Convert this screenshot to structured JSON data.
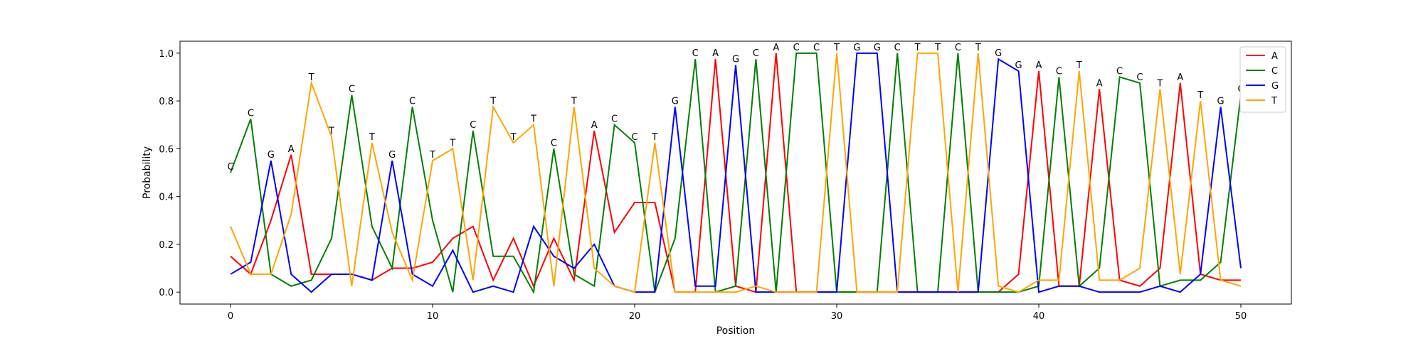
{
  "chart_data": {
    "type": "line",
    "xlabel": "Position",
    "ylabel": "Probability",
    "xlim": [
      -2.5,
      52.5
    ],
    "ylim": [
      -0.05,
      1.05
    ],
    "xticks": [
      0,
      10,
      20,
      30,
      40,
      50
    ],
    "yticks": [
      0.0,
      0.2,
      0.4,
      0.6,
      0.8,
      1.0
    ],
    "ytick_labels": [
      "0.0",
      "0.2",
      "0.4",
      "0.6",
      "0.8",
      "1.0"
    ],
    "legend_position": "top-right",
    "x": [
      0,
      1,
      2,
      3,
      4,
      5,
      6,
      7,
      8,
      9,
      10,
      11,
      12,
      13,
      14,
      15,
      16,
      17,
      18,
      19,
      20,
      21,
      22,
      23,
      24,
      25,
      26,
      27,
      28,
      29,
      30,
      31,
      32,
      33,
      34,
      35,
      36,
      37,
      38,
      39,
      40,
      41,
      42,
      43,
      44,
      45,
      46,
      47,
      48,
      49,
      50
    ],
    "series": [
      {
        "name": "A",
        "color": "#ff0000",
        "values": [
          0.15,
          0.075,
          0.3,
          0.575,
          0.075,
          0.075,
          0.075,
          0.05,
          0.1,
          0.1,
          0.125,
          0.225,
          0.275,
          0.05,
          0.225,
          0.025,
          0.225,
          0.05,
          0.675,
          0.25,
          0.375,
          0.375,
          0.0,
          0.0,
          0.975,
          0.025,
          0.0,
          1.0,
          0.0,
          0.0,
          0.0,
          0.0,
          0.0,
          0.0,
          0.0,
          0.0,
          0.0,
          0.0,
          0.0,
          0.075,
          0.925,
          0.025,
          0.025,
          0.85,
          0.05,
          0.025,
          0.1,
          0.875,
          0.075,
          0.05,
          0.05
        ]
      },
      {
        "name": "C",
        "color": "#008000",
        "values": [
          0.5,
          0.725,
          0.075,
          0.025,
          0.05,
          0.225,
          0.825,
          0.275,
          0.1,
          0.775,
          0.3,
          0.0,
          0.675,
          0.15,
          0.15,
          0.0,
          0.6,
          0.075,
          0.025,
          0.7,
          0.625,
          0.0,
          0.225,
          0.975,
          0.0,
          0.025,
          0.975,
          0.0,
          1.0,
          1.0,
          0.0,
          0.0,
          0.0,
          1.0,
          0.0,
          0.0,
          1.0,
          0.0,
          0.0,
          0.0,
          0.025,
          0.9,
          0.025,
          0.1,
          0.9,
          0.875,
          0.025,
          0.05,
          0.05,
          0.125,
          0.825
        ]
      },
      {
        "name": "G",
        "color": "#0000ff",
        "values": [
          0.075,
          0.125,
          0.55,
          0.075,
          0.0,
          0.075,
          0.075,
          0.05,
          0.55,
          0.075,
          0.025,
          0.175,
          0.0,
          0.025,
          0.0,
          0.275,
          0.15,
          0.1,
          0.2,
          0.025,
          0.0,
          0.0,
          0.775,
          0.025,
          0.025,
          0.95,
          0.0,
          0.0,
          0.0,
          0.0,
          0.0,
          1.0,
          1.0,
          0.0,
          0.0,
          0.0,
          0.0,
          0.0,
          0.975,
          0.925,
          0.0,
          0.025,
          0.025,
          0.0,
          0.0,
          0.0,
          0.025,
          0.0,
          0.075,
          0.775,
          0.1
        ]
      },
      {
        "name": "T",
        "color": "#ffa500",
        "values": [
          0.275,
          0.075,
          0.075,
          0.325,
          0.875,
          0.65,
          0.025,
          0.625,
          0.25,
          0.05,
          0.55,
          0.6,
          0.05,
          0.775,
          0.625,
          0.7,
          0.025,
          0.775,
          0.1,
          0.025,
          0.0,
          0.625,
          0.0,
          0.0,
          0.0,
          0.0,
          0.025,
          0.0,
          0.0,
          0.0,
          1.0,
          0.0,
          0.0,
          0.0,
          1.0,
          1.0,
          0.0,
          1.0,
          0.025,
          0.0,
          0.05,
          0.05,
          0.925,
          0.05,
          0.05,
          0.1,
          0.85,
          0.075,
          0.8,
          0.05,
          0.025
        ]
      }
    ],
    "annotations": [
      "C",
      "C",
      "G",
      "A",
      "T",
      "T",
      "C",
      "T",
      "G",
      "C",
      "T",
      "T",
      "C",
      "T",
      "T",
      "T",
      "C",
      "T",
      "A",
      "C",
      "C",
      "T",
      "G",
      "C",
      "A",
      "G",
      "C",
      "A",
      "C",
      "C",
      "T",
      "G",
      "G",
      "C",
      "T",
      "T",
      "C",
      "T",
      "G",
      "G",
      "A",
      "C",
      "T",
      "A",
      "C",
      "C",
      "T",
      "A",
      "T",
      "G",
      "C"
    ]
  }
}
